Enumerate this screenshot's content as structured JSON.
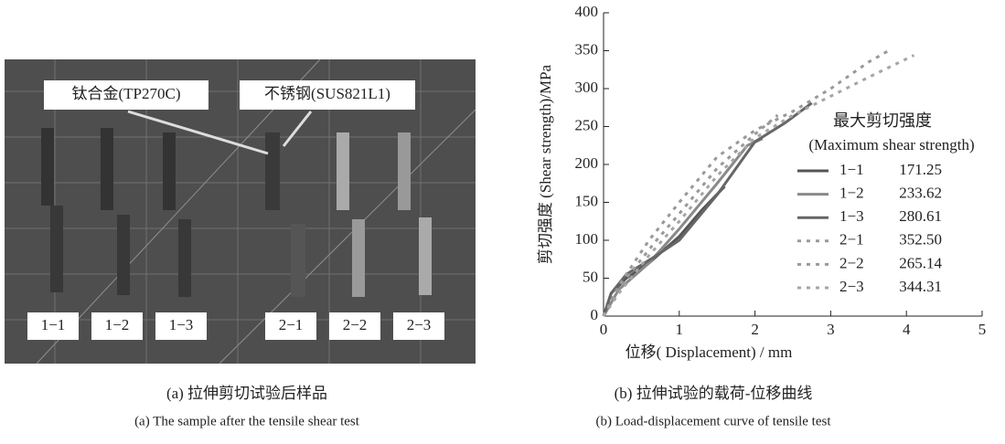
{
  "photo": {
    "callouts": [
      "钛合金(TP270C)",
      "不锈钢(SUS821L1)"
    ],
    "samples": [
      "1−1",
      "1−2",
      "1−3",
      "2−1",
      "2−2",
      "2−3"
    ],
    "caption_zh": "(a) 拉伸剪切试验后样品",
    "caption_en": "(a) The sample after the tensile shear test"
  },
  "chart_data": {
    "type": "line",
    "xlabel": "位移( Displacement) / mm",
    "ylabel": "剪切强度 (Shear strength)/MPa",
    "xlim": [
      0,
      5
    ],
    "xticks": [
      0,
      1,
      2,
      3,
      4,
      5
    ],
    "ylim": [
      0,
      400
    ],
    "yticks": [
      0,
      50,
      100,
      150,
      200,
      250,
      300,
      350,
      400
    ],
    "legend_title": "最大剪切强度",
    "legend_subtitle": "(Maximum shear strength)",
    "caption_zh": "(b) 拉伸试验的载荷-位移曲线",
    "caption_en": "(b) Load-displacement curve of tensile test",
    "series": [
      {
        "name": "1−1",
        "max_label": "171.25",
        "color": "#555555",
        "dashed": false,
        "x": [
          0,
          0.1,
          0.3,
          0.6,
          1.0,
          1.3,
          1.6
        ],
        "values": [
          0,
          30,
          50,
          70,
          105,
          140,
          171
        ]
      },
      {
        "name": "1−2",
        "max_label": "233.62",
        "color": "#8a8a8a",
        "dashed": false,
        "x": [
          0,
          0.2,
          0.6,
          1.0,
          1.5,
          1.9,
          2.1
        ],
        "values": [
          0,
          35,
          70,
          115,
          175,
          225,
          234
        ]
      },
      {
        "name": "1−3",
        "max_label": "280.61",
        "color": "#666666",
        "dashed": false,
        "x": [
          0,
          0.1,
          0.3,
          0.7,
          1.0,
          1.5,
          2.0,
          2.4,
          2.75
        ],
        "values": [
          0,
          30,
          55,
          80,
          100,
          160,
          230,
          255,
          281
        ]
      },
      {
        "name": "2−1",
        "max_label": "352.50",
        "color": "#999999",
        "dashed": true,
        "x": [
          0,
          0.2,
          0.6,
          1.0,
          1.5,
          2.0,
          2.5,
          3.0,
          3.5,
          3.8
        ],
        "values": [
          0,
          40,
          100,
          150,
          210,
          245,
          270,
          300,
          335,
          352
        ]
      },
      {
        "name": "2−2",
        "max_label": "265.14",
        "color": "#999999",
        "dashed": true,
        "x": [
          0,
          0.3,
          0.7,
          1.0,
          1.5,
          2.0,
          2.3
        ],
        "values": [
          0,
          50,
          100,
          135,
          195,
          240,
          265
        ]
      },
      {
        "name": "2−3",
        "max_label": "344.31",
        "color": "#a5a5a5",
        "dashed": true,
        "x": [
          0,
          0.2,
          0.6,
          1.0,
          1.5,
          2.0,
          2.5,
          3.0,
          3.5,
          4.1
        ],
        "values": [
          0,
          30,
          80,
          125,
          185,
          235,
          265,
          290,
          315,
          344
        ]
      }
    ]
  }
}
